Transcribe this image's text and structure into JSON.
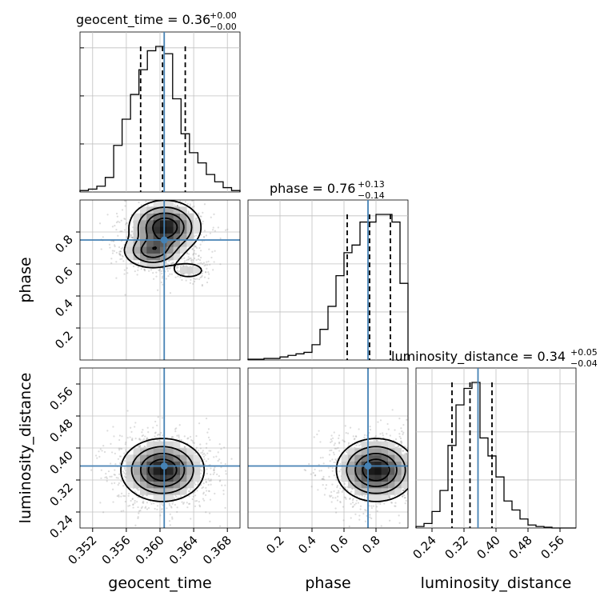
{
  "chart_data": {
    "type": "corner",
    "parameters": [
      "geocent_time",
      "phase",
      "luminosity_distance"
    ],
    "truths": {
      "geocent_time": 0.3605,
      "phase": 0.75,
      "luminosity_distance": 0.355
    },
    "colors": {
      "truth": "#4682b4",
      "hist": "#000000",
      "grid": "#c0c0c0",
      "points": "#9a9a9a"
    },
    "grid": true,
    "titles": [
      {
        "param": "geocent_time",
        "label": "geocent_time = 0.36",
        "plus": "+0.00",
        "minus": "−0.00"
      },
      {
        "param": "phase",
        "label": "phase = 0.76",
        "plus": "+0.13",
        "minus": "−0.14"
      },
      {
        "param": "luminosity_distance",
        "label": "luminosity_distance = 0.34",
        "plus": "+0.05",
        "minus": "−0.04"
      }
    ],
    "axes": {
      "geocent_time": {
        "label": "geocent_time",
        "range": [
          0.3505,
          0.3695
        ],
        "ticks": [
          0.352,
          0.356,
          0.36,
          0.364,
          0.368
        ],
        "tick_labels": [
          "0.352",
          "0.356",
          "0.360",
          "0.364",
          "0.368"
        ]
      },
      "phase": {
        "label": "phase",
        "range": [
          0.0,
          1.0
        ],
        "ticks": [
          0.2,
          0.4,
          0.6,
          0.8
        ],
        "tick_labels": [
          "0.2",
          "0.4",
          "0.6",
          "0.8"
        ]
      },
      "luminosity_distance": {
        "label": "luminosity_distance",
        "range": [
          0.2,
          0.6
        ],
        "ticks": [
          0.24,
          0.32,
          0.4,
          0.48,
          0.56
        ],
        "tick_labels": [
          "0.24",
          "0.32",
          "0.40",
          "0.48",
          "0.56"
        ]
      }
    },
    "histograms": {
      "geocent_time": {
        "edges": [
          0.3505,
          0.3515,
          0.3525,
          0.3535,
          0.3545,
          0.3555,
          0.3565,
          0.3575,
          0.3585,
          0.3595,
          0.3605,
          0.3615,
          0.3625,
          0.3635,
          0.3645,
          0.3655,
          0.3665,
          0.3675,
          0.3685,
          0.3695
        ],
        "counts": [
          0.01,
          0.02,
          0.04,
          0.1,
          0.32,
          0.5,
          0.67,
          0.84,
          0.97,
          1.0,
          0.95,
          0.64,
          0.4,
          0.27,
          0.2,
          0.12,
          0.07,
          0.03,
          0.01
        ],
        "quantiles": [
          0.3577,
          0.3603,
          0.363
        ]
      },
      "phase": {
        "edges": [
          0.0,
          0.05,
          0.1,
          0.15,
          0.2,
          0.25,
          0.3,
          0.35,
          0.4,
          0.45,
          0.5,
          0.55,
          0.6,
          0.65,
          0.7,
          0.75,
          0.8,
          0.85,
          0.9,
          0.95,
          1.0
        ],
        "counts": [
          0.005,
          0.005,
          0.01,
          0.01,
          0.02,
          0.03,
          0.04,
          0.05,
          0.1,
          0.2,
          0.35,
          0.55,
          0.7,
          0.75,
          0.9,
          0.9,
          0.95,
          0.95,
          0.9,
          0.5
        ],
        "quantiles": [
          0.62,
          0.76,
          0.89
        ]
      },
      "luminosity_distance": {
        "edges": [
          0.2,
          0.22,
          0.24,
          0.26,
          0.28,
          0.3,
          0.32,
          0.34,
          0.36,
          0.38,
          0.4,
          0.42,
          0.44,
          0.46,
          0.48,
          0.5,
          0.52,
          0.54,
          0.56,
          0.58,
          0.6
        ],
        "counts": [
          0.01,
          0.03,
          0.11,
          0.25,
          0.55,
          0.82,
          0.93,
          0.97,
          0.6,
          0.48,
          0.34,
          0.18,
          0.12,
          0.06,
          0.02,
          0.01,
          0.005,
          0.0,
          0.0,
          0.0
        ],
        "quantiles": [
          0.29,
          0.335,
          0.39
        ]
      }
    },
    "joints": [
      {
        "x": "geocent_time",
        "y": "phase",
        "modes": [
          {
            "x": 0.3606,
            "y": 0.83,
            "sx": 0.0019,
            "sy": 0.075,
            "w": 0.55
          },
          {
            "x": 0.3591,
            "y": 0.68,
            "sx": 0.0016,
            "sy": 0.05,
            "w": 0.35
          },
          {
            "x": 0.3634,
            "y": 0.56,
            "sx": 0.0012,
            "sy": 0.03,
            "w": 0.1
          }
        ]
      },
      {
        "x": "geocent_time",
        "y": "luminosity_distance",
        "modes": [
          {
            "x": 0.3603,
            "y": 0.345,
            "sx": 0.0022,
            "sy": 0.035,
            "w": 1.0
          }
        ]
      },
      {
        "x": "phase",
        "y": "luminosity_distance",
        "modes": [
          {
            "x": 0.8,
            "y": 0.345,
            "sx": 0.11,
            "sy": 0.035,
            "w": 1.0
          }
        ]
      }
    ]
  }
}
